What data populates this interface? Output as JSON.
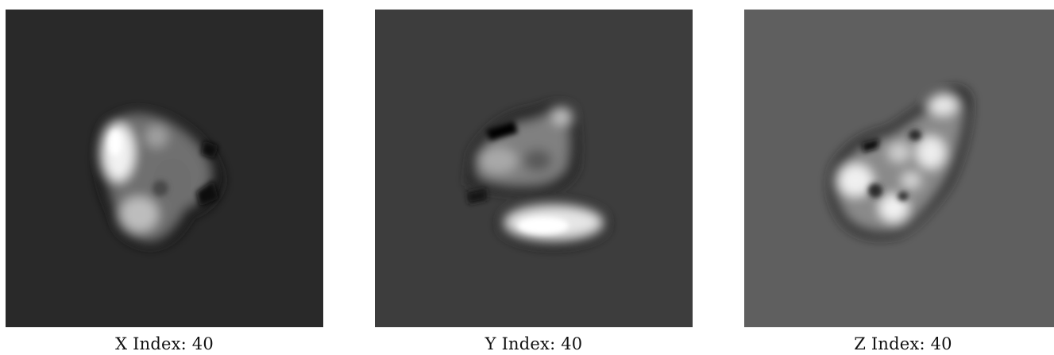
{
  "panels": [
    {
      "caption": "X Index: 40",
      "background": "#292929"
    },
    {
      "caption": "Y Index: 40",
      "background": "#3d3d3d"
    },
    {
      "caption": "Z Index: 40",
      "background": "#5f5f5f"
    }
  ]
}
